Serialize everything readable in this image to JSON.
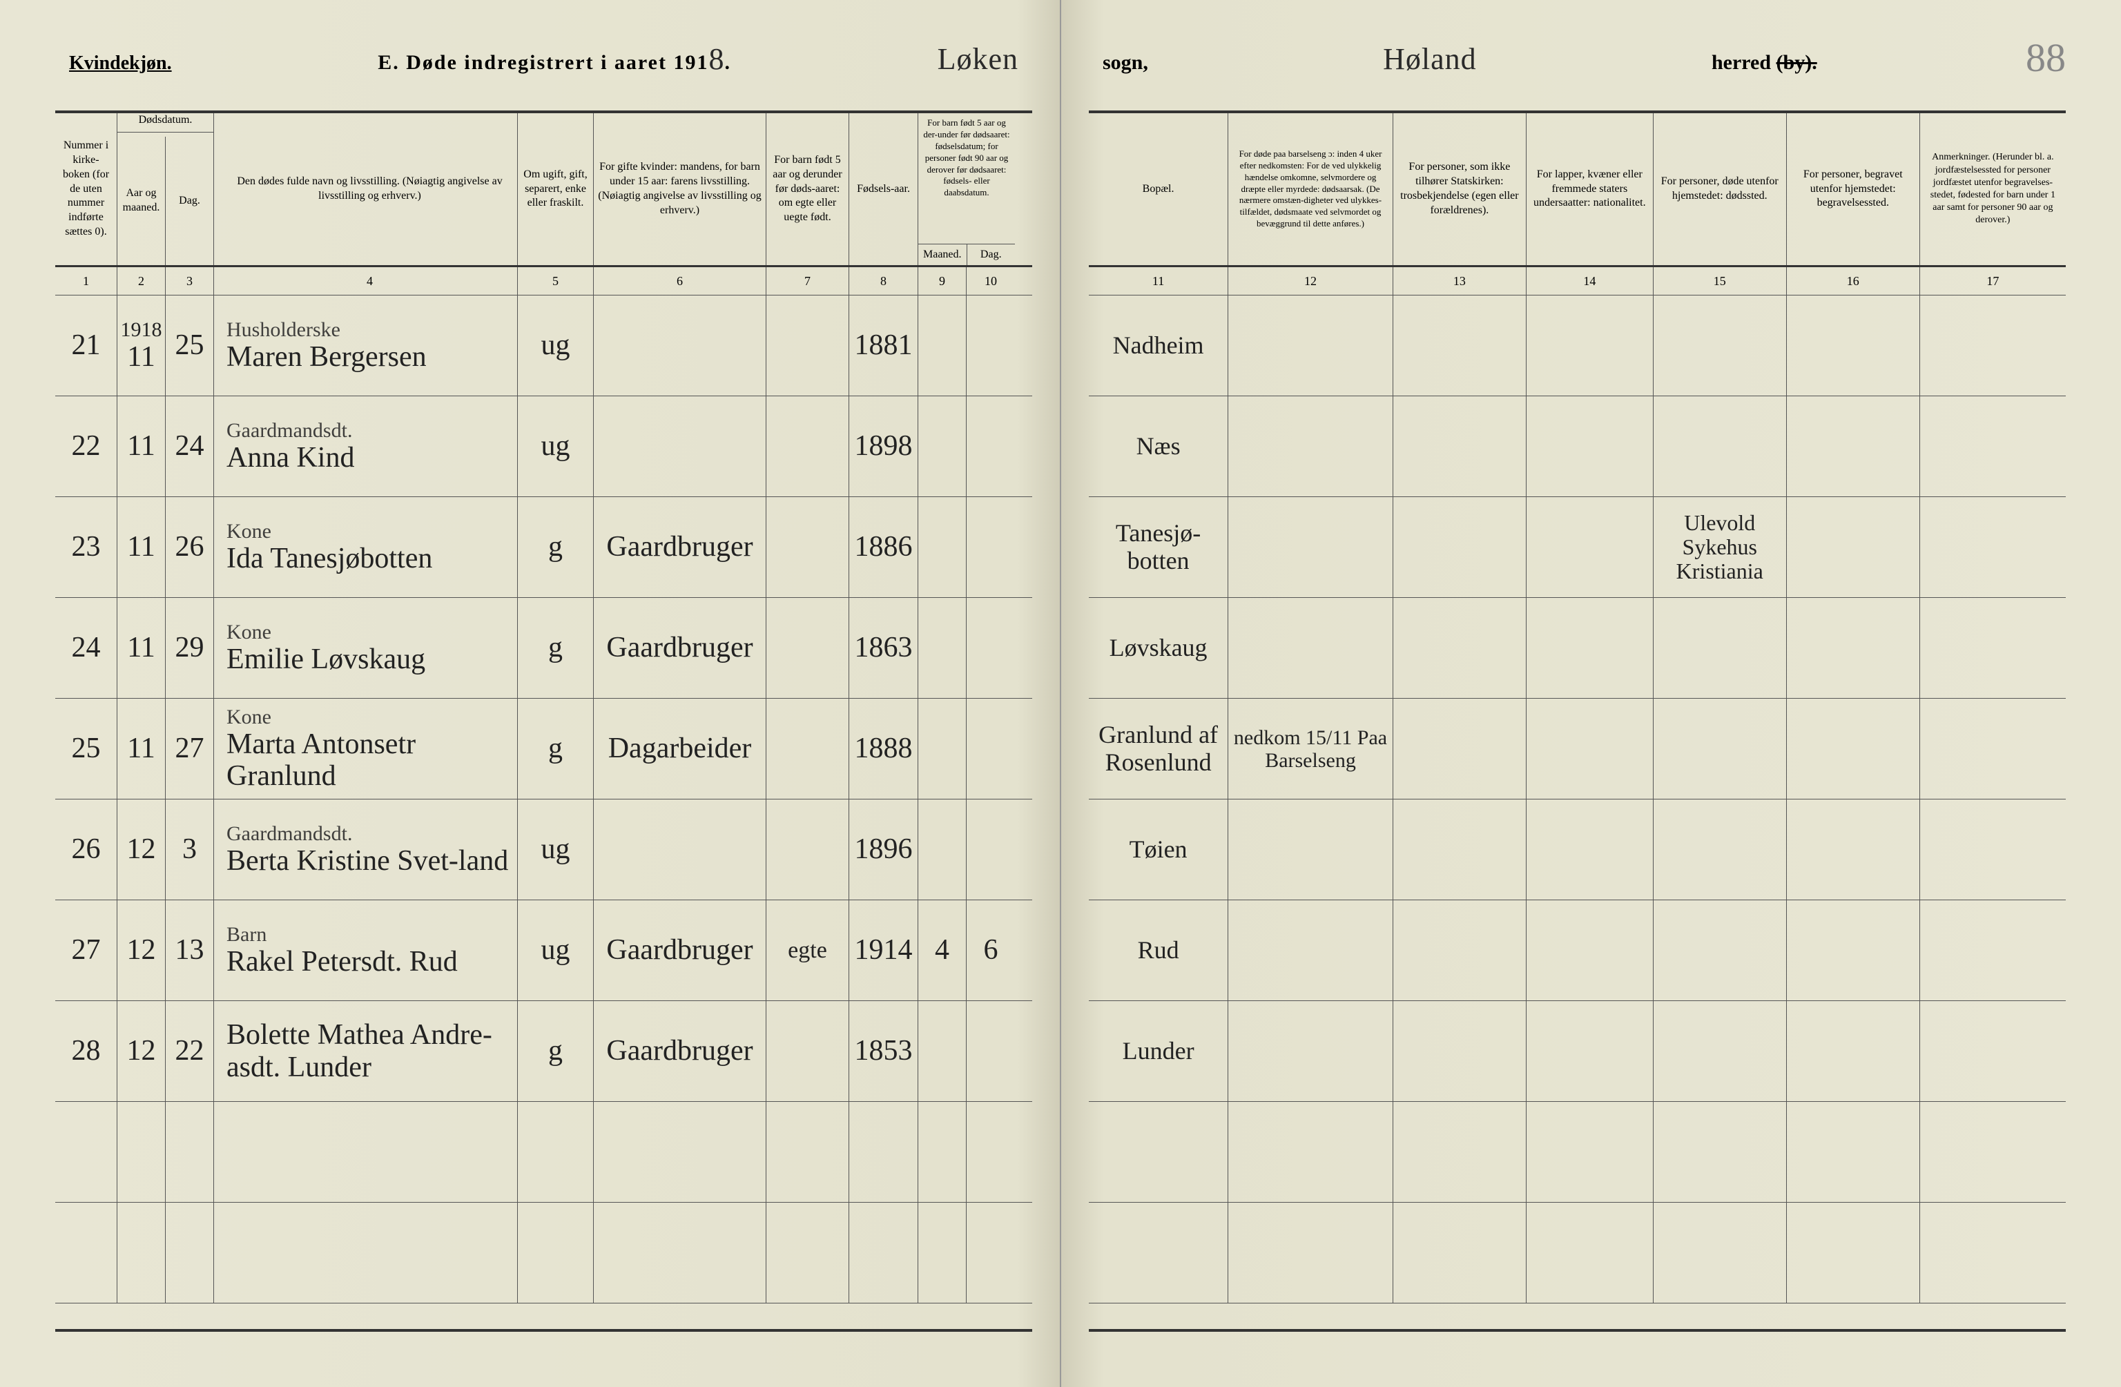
{
  "document": {
    "gender_label": "Kvindekjøn.",
    "title_prefix": "E.   Døde indregistrert i aaret 191",
    "year_digit": "8",
    "title_suffix": ".",
    "sogn_name": "Løken",
    "sogn_label": "sogn,",
    "herred_name": "Høland",
    "herred_label": "herred",
    "by_struck": "(by).",
    "page_number": "88"
  },
  "columns_left": {
    "c1": "Nummer i kirke-boken (for de uten nummer indførte sættes 0).",
    "c2_group": "Dødsdatum.",
    "c2": "Aar og maaned.",
    "c3": "Dag.",
    "c4": "Den dødes fulde navn og livsstilling. (Nøiagtig angivelse av livsstilling og erhverv.)",
    "c5": "Om ugift, gift, separert, enke eller fraskilt.",
    "c6": "For gifte kvinder: mandens, for barn under 15 aar: farens livsstilling. (Nøiagtig angivelse av livsstilling og erhverv.)",
    "c7": "For barn født 5 aar og derunder før døds-aaret: om egte eller uegte født.",
    "c8": "Fødsels-aar.",
    "c9_10_group": "For barn født 5 aar og der-under før dødsaaret: fødselsdatum; for personer født 90 aar og derover før dødsaaret: fødsels- eller daabsdatum.",
    "c9": "Maaned.",
    "c10": "Dag."
  },
  "columns_right": {
    "c11": "Bopæl.",
    "c12": "For døde paa barselseng ɔ: inden 4 uker efter nedkomsten: For de ved ulykkelig hændelse omkomne, selvmordere og dræpte eller myrdede: dødsaarsak. (De nærmere omstæn-digheter ved ulykkes-tilfældet, dødsmaate ved selvmordet og bevæggrund til dette anføres.)",
    "c13": "For personer, som ikke tilhører Statskirken: trosbekjendelse (egen eller forældrenes).",
    "c14": "For lapper, kvæner eller fremmede staters undersaatter: nationalitet.",
    "c15": "For personer, døde utenfor hjemstedet: dødssted.",
    "c16": "For personer, begravet utenfor hjemstedet: begravelsessted.",
    "c17": "Anmerkninger. (Herunder bl. a. jordfæstelsessted for personer jordfæstet utenfor begravelses-stedet, fødested for barn under 1 aar samt for personer 90 aar og derover.)"
  },
  "colnums_left": [
    "1",
    "2",
    "3",
    "4",
    "5",
    "6",
    "7",
    "8",
    "9",
    "10"
  ],
  "colnums_right": [
    "11",
    "12",
    "13",
    "14",
    "15",
    "16",
    "17"
  ],
  "rows": [
    {
      "num": "21",
      "year_month": "11",
      "above_month": "1918",
      "day": "25",
      "occupation": "Husholderske",
      "name": "Maren Bergersen",
      "status": "ug",
      "spouse_occ": "",
      "legit": "",
      "birth_year": "1881",
      "b_month": "",
      "b_day": "",
      "residence": "Nadheim",
      "cause": "",
      "faith": "",
      "nationality": "",
      "death_place": "",
      "burial_place": "",
      "remarks": ""
    },
    {
      "num": "22",
      "year_month": "11",
      "above_month": "",
      "day": "24",
      "occupation": "Gaardmandsdt.",
      "name": "Anna Kind",
      "status": "ug",
      "spouse_occ": "",
      "legit": "",
      "birth_year": "1898",
      "b_month": "",
      "b_day": "",
      "residence": "Næs",
      "cause": "",
      "faith": "",
      "nationality": "",
      "death_place": "",
      "burial_place": "",
      "remarks": ""
    },
    {
      "num": "23",
      "year_month": "11",
      "above_month": "",
      "day": "26",
      "occupation": "Kone",
      "name": "Ida Tanesjøbotten",
      "status": "g",
      "spouse_occ": "Gaardbruger",
      "legit": "",
      "birth_year": "1886",
      "b_month": "",
      "b_day": "",
      "residence": "Tanesjø- botten",
      "cause": "",
      "faith": "",
      "nationality": "",
      "death_place": "Ulevold Sykehus Kristiania",
      "burial_place": "",
      "remarks": ""
    },
    {
      "num": "24",
      "year_month": "11",
      "above_month": "",
      "day": "29",
      "occupation": "Kone",
      "name": "Emilie Løvskaug",
      "status": "g",
      "spouse_occ": "Gaardbruger",
      "legit": "",
      "birth_year": "1863",
      "b_month": "",
      "b_day": "",
      "residence": "Løvskaug",
      "cause": "",
      "faith": "",
      "nationality": "",
      "death_place": "",
      "burial_place": "",
      "remarks": ""
    },
    {
      "num": "25",
      "year_month": "11",
      "above_month": "",
      "day": "27",
      "occupation": "Kone",
      "name": "Marta Antonsetr Granlund",
      "status": "g",
      "spouse_occ": "Dagarbeider",
      "legit": "",
      "birth_year": "1888",
      "b_month": "",
      "b_day": "",
      "residence": "Granlund af Rosenlund",
      "cause": "nedkom 15/11 Paa Barselseng",
      "faith": "",
      "nationality": "",
      "death_place": "",
      "burial_place": "",
      "remarks": ""
    },
    {
      "num": "26",
      "year_month": "12",
      "above_month": "",
      "day": "3",
      "occupation": "Gaardmandsdt.",
      "name": "Berta Kristine Svet-land",
      "status": "ug",
      "spouse_occ": "",
      "legit": "",
      "birth_year": "1896",
      "b_month": "",
      "b_day": "",
      "residence": "Tøien",
      "cause": "",
      "faith": "",
      "nationality": "",
      "death_place": "",
      "burial_place": "",
      "remarks": ""
    },
    {
      "num": "27",
      "year_month": "12",
      "above_month": "",
      "day": "13",
      "occupation": "Barn",
      "name": "Rakel Petersdt. Rud",
      "status": "ug",
      "spouse_occ": "Gaardbruger",
      "legit": "egte",
      "birth_year": "1914",
      "b_month": "4",
      "b_day": "6",
      "residence": "Rud",
      "cause": "",
      "faith": "",
      "nationality": "",
      "death_place": "",
      "burial_place": "",
      "remarks": ""
    },
    {
      "num": "28",
      "year_month": "12",
      "above_month": "",
      "day": "22",
      "occupation": "",
      "name": "Bolette Mathea Andre-asdt. Lunder",
      "status": "g",
      "spouse_occ": "Gaardbruger",
      "legit": "",
      "birth_year": "1853",
      "b_month": "",
      "b_day": "",
      "residence": "Lunder",
      "cause": "",
      "faith": "",
      "nationality": "",
      "death_place": "",
      "burial_place": "",
      "remarks": ""
    },
    {
      "num": "",
      "year_month": "",
      "above_month": "",
      "day": "",
      "occupation": "",
      "name": "",
      "status": "",
      "spouse_occ": "",
      "legit": "",
      "birth_year": "",
      "b_month": "",
      "b_day": "",
      "residence": "",
      "cause": "",
      "faith": "",
      "nationality": "",
      "death_place": "",
      "burial_place": "",
      "remarks": ""
    },
    {
      "num": "",
      "year_month": "",
      "above_month": "",
      "day": "",
      "occupation": "",
      "name": "",
      "status": "",
      "spouse_occ": "",
      "legit": "",
      "birth_year": "",
      "b_month": "",
      "b_day": "",
      "residence": "",
      "cause": "",
      "faith": "",
      "nationality": "",
      "death_place": "",
      "burial_place": "",
      "remarks": ""
    }
  ],
  "style": {
    "page_bg": "#e8e6d4",
    "ink_color": "#222222",
    "rule_color": "#333333",
    "header_fontsize": 16,
    "handwriting_fontsize": 42
  }
}
